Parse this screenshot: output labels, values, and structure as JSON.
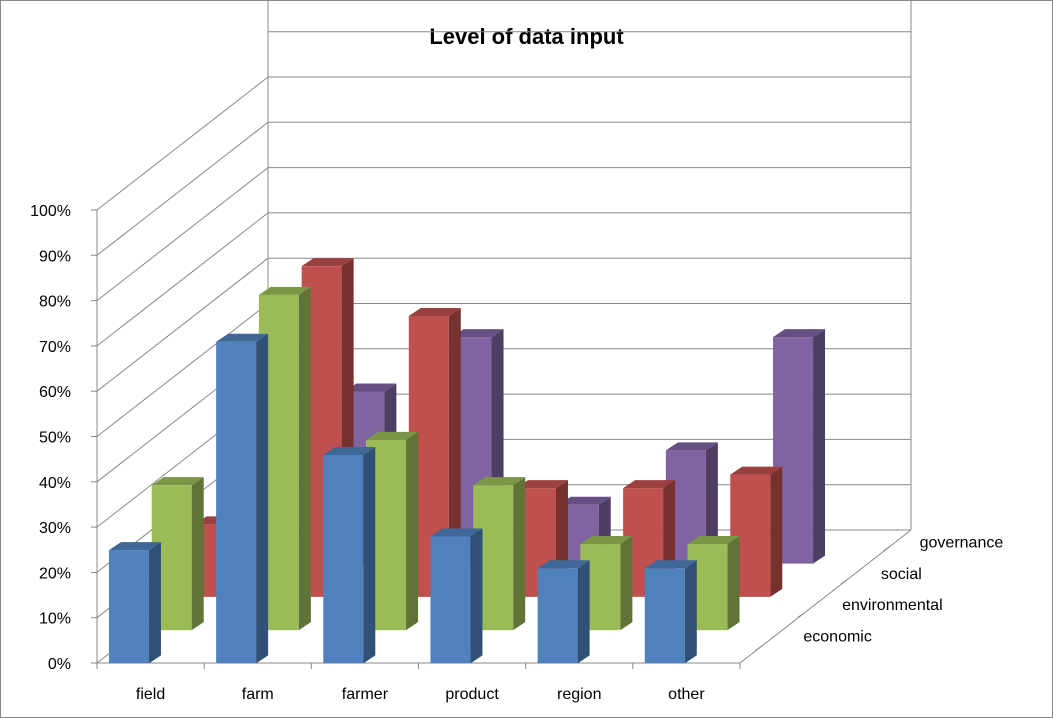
{
  "chart_data": {
    "type": "bar",
    "subtype": "3d-column",
    "title": "Level of data input",
    "categories": [
      "field",
      "farm",
      "farmer",
      "product",
      "region",
      "other"
    ],
    "series": [
      {
        "name": "economic",
        "color": "#4F81BD",
        "values": [
          25,
          71,
          46,
          28,
          21,
          21
        ]
      },
      {
        "name": "environmental",
        "color": "#9BBB59",
        "values": [
          32,
          74,
          42,
          32,
          19,
          19
        ]
      },
      {
        "name": "social",
        "color": "#C0504D",
        "values": [
          16,
          73,
          62,
          24,
          24,
          27
        ]
      },
      {
        "name": "governance",
        "color": "#8064A2",
        "values": [
          null,
          38,
          50,
          13,
          25,
          50
        ]
      }
    ],
    "yticks": [
      "0%",
      "10%",
      "20%",
      "30%",
      "40%",
      "50%",
      "60%",
      "70%",
      "80%",
      "90%",
      "100%"
    ],
    "ylim": [
      0,
      100
    ],
    "grid": true,
    "legend": "depth-axis-right"
  }
}
